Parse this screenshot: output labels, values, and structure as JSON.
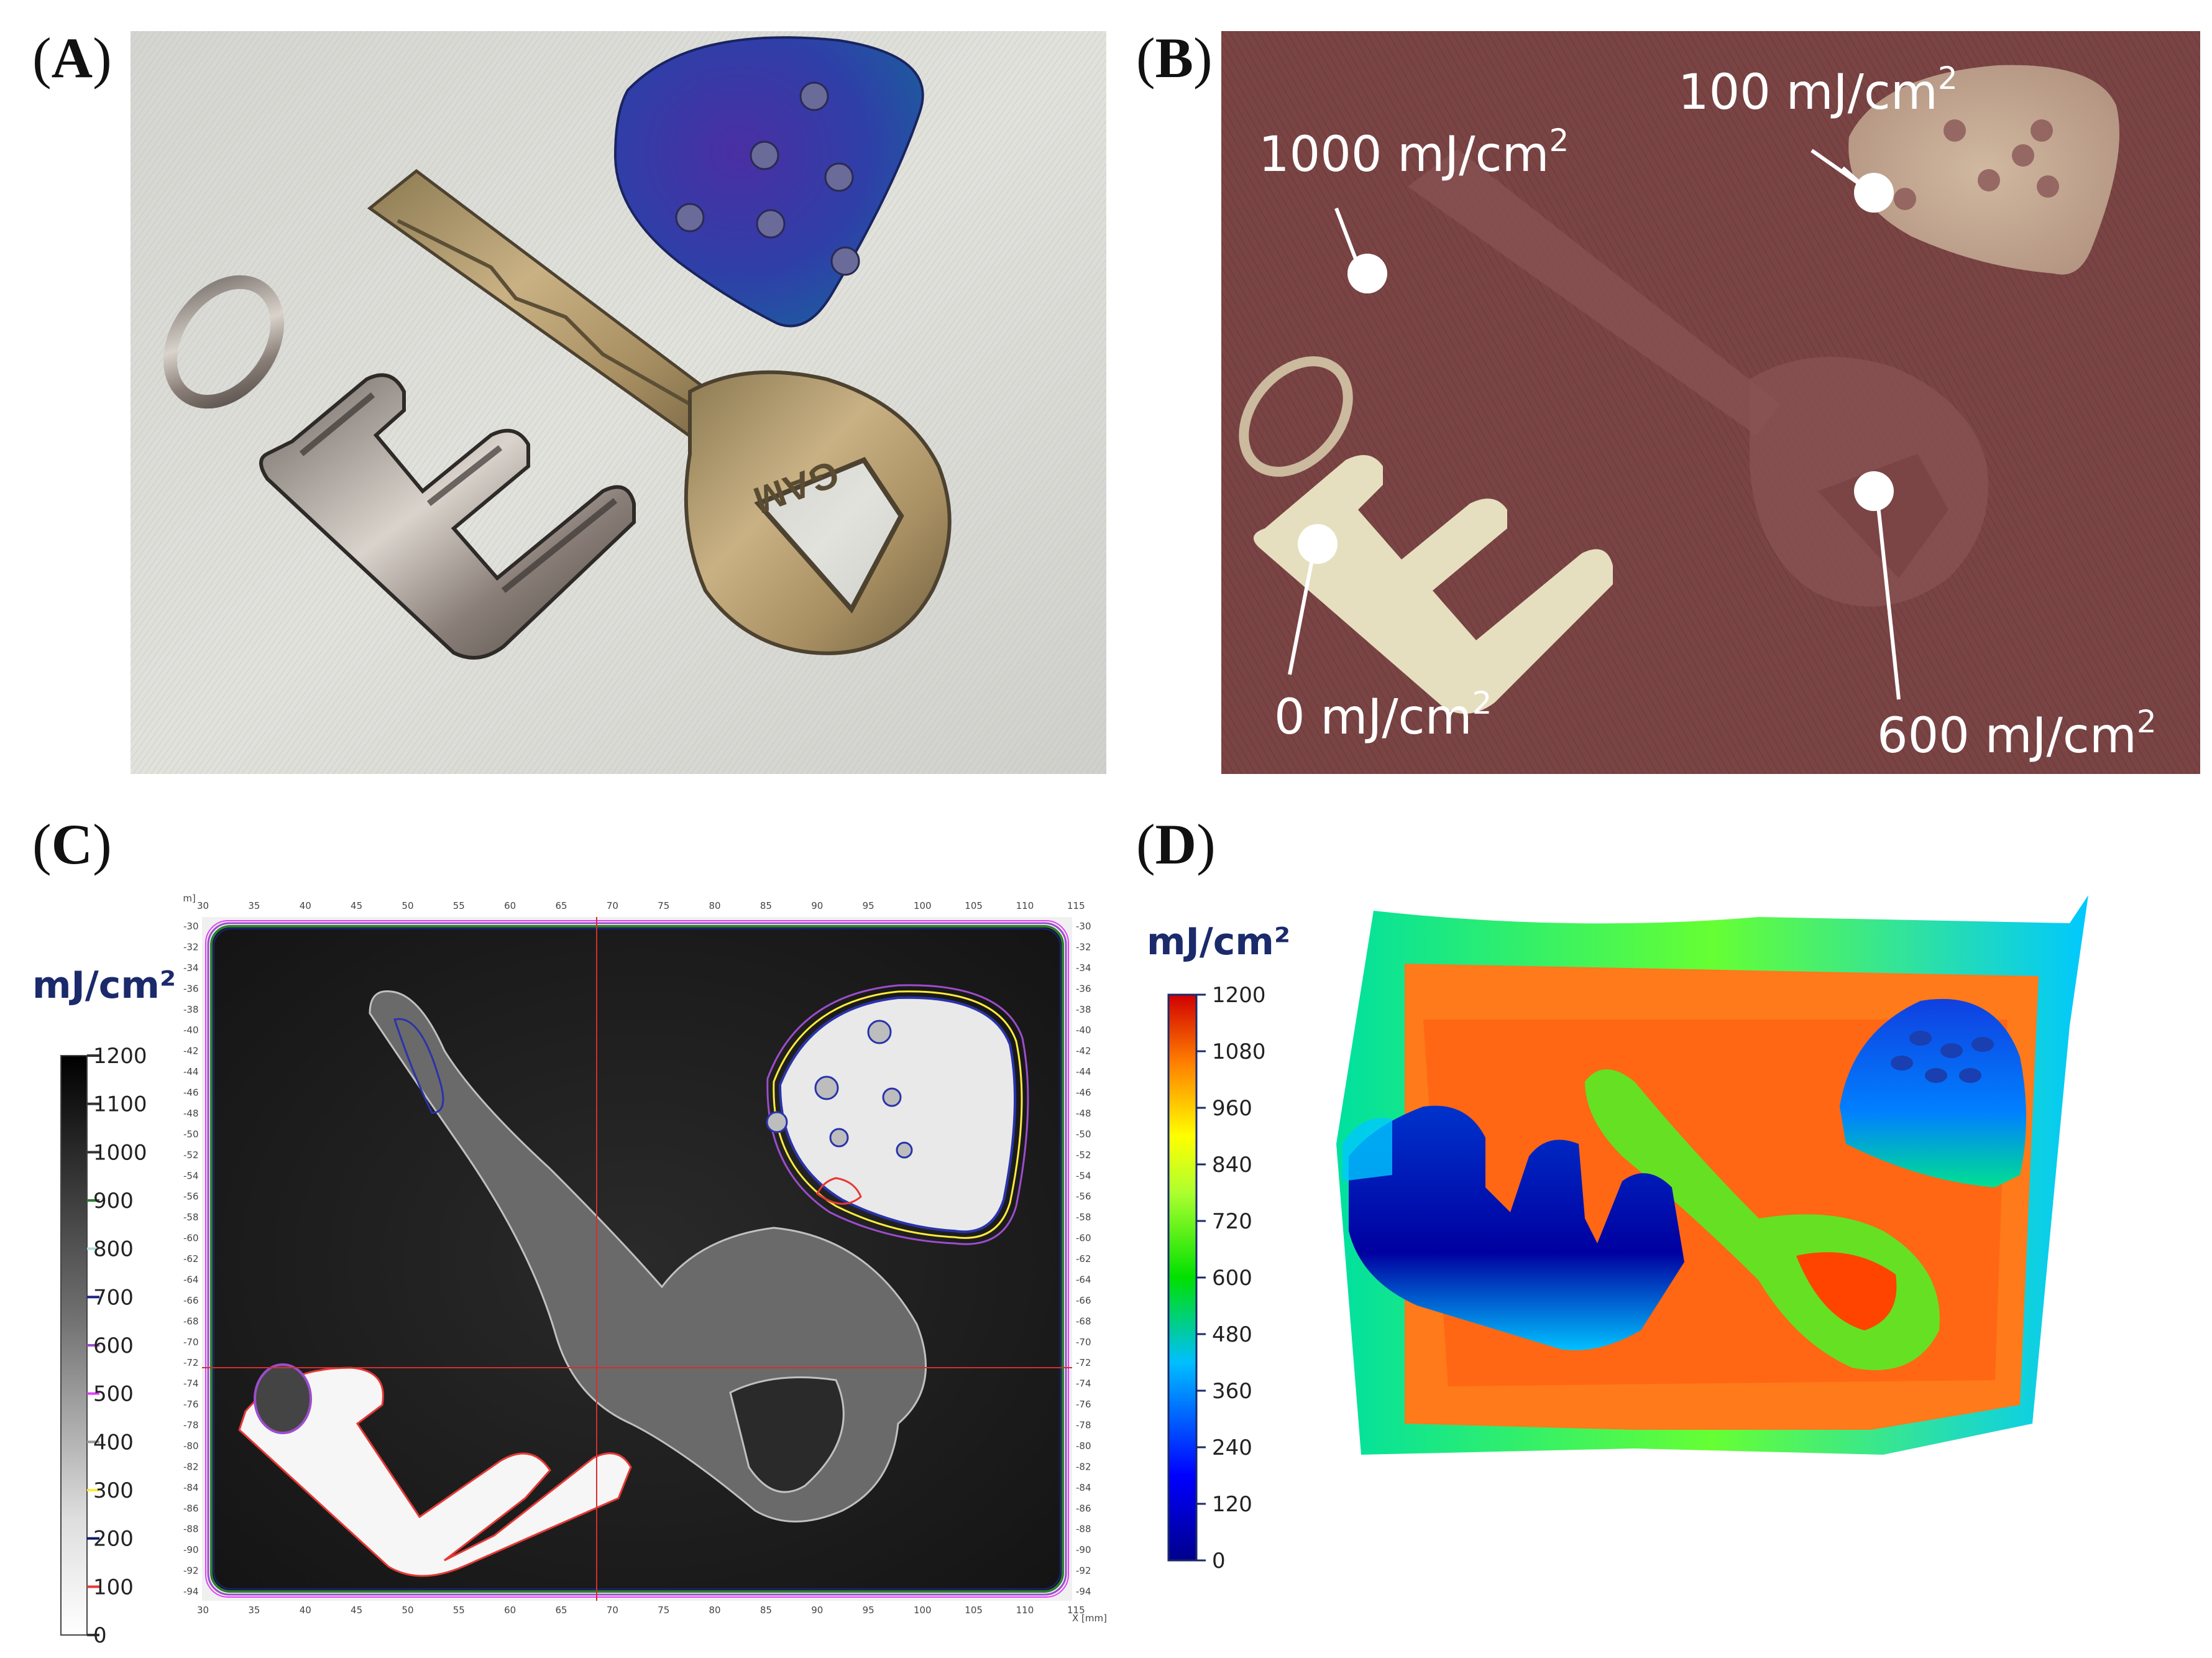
{
  "panels": {
    "a": {
      "letter": "A"
    },
    "b": {
      "letter": "B"
    },
    "c": {
      "letter": "C"
    },
    "d": {
      "letter": "D"
    }
  },
  "panel_b": {
    "labels": [
      {
        "text": "1000 mJ/cm",
        "sup": "2"
      },
      {
        "text": "100 mJ/cm",
        "sup": "2"
      },
      {
        "text": "0 mJ/cm",
        "sup": "2"
      },
      {
        "text": "600 mJ/cm",
        "sup": "2"
      }
    ]
  },
  "panel_a": {
    "key_engraving": "GAM"
  },
  "panel_c": {
    "colorbar_title": "mJ/cm²",
    "colorbar_ticks": [
      "1200",
      "1100",
      "1000",
      "900",
      "800",
      "700",
      "600",
      "500",
      "400",
      "300",
      "200",
      "100",
      "0"
    ],
    "contour_colors": {
      "900": "#2e7d32",
      "800": "#b2dfdb",
      "700": "#1a237e",
      "600": "#9c4dcc",
      "500": "#e040fb",
      "400": "#ffffff",
      "300": "#ffeb3b",
      "200": "#0d1b6b",
      "100": "#e53935"
    },
    "y_axis_label": "Y [mm]",
    "x_axis_label": "X [mm]",
    "x_ticks": [
      "30",
      "35",
      "40",
      "45",
      "50",
      "55",
      "60",
      "65",
      "70",
      "75",
      "80",
      "85",
      "90",
      "95",
      "100",
      "105",
      "110",
      "115"
    ],
    "y_ticks": [
      "-30",
      "-32",
      "-34",
      "-36",
      "-38",
      "-40",
      "-42",
      "-44",
      "-46",
      "-48",
      "-50",
      "-52",
      "-54",
      "-56",
      "-58",
      "-60",
      "-62",
      "-64",
      "-66",
      "-68",
      "-70",
      "-72",
      "-74",
      "-76",
      "-78",
      "-80",
      "-82",
      "-84",
      "-86",
      "-88",
      "-90",
      "-92",
      "-94"
    ]
  },
  "panel_d": {
    "colorbar_title": "mJ/cm²",
    "colorbar_ticks": [
      "1200",
      "1080",
      "960",
      "840",
      "720",
      "600",
      "480",
      "360",
      "240",
      "120",
      "0"
    ]
  }
}
